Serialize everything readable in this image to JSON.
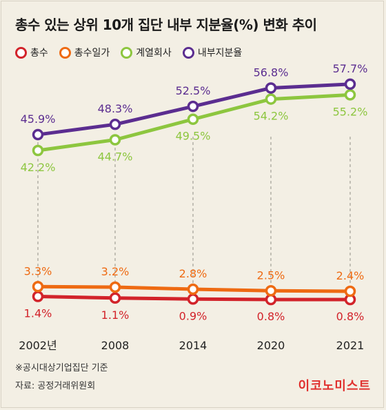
{
  "title": "총수 있는 상위 10개 집단 내부 지분율(%) 변화 추이",
  "footnotes": [
    "※공시대상기업집단 기준",
    "자료: 공정거래위원회"
  ],
  "brand": "이코노미스트",
  "chart_data": {
    "type": "line",
    "title": "총수 있는 상위 10개 집단 내부 지분율(%) 변화 추이",
    "categories": [
      "2002년",
      "2008",
      "2014",
      "2020",
      "2021"
    ],
    "ylabel": "",
    "xlabel": "",
    "grid": false,
    "legend": "top-left",
    "series": [
      {
        "name": "총수",
        "color": "#d2232a",
        "values": [
          1.4,
          1.1,
          0.9,
          0.8,
          0.8
        ],
        "labels": [
          "1.4%",
          "1.1%",
          "0.9%",
          "0.8%",
          "0.8%"
        ],
        "label_position": "below"
      },
      {
        "name": "총수일가",
        "color": "#ee6a12",
        "values": [
          3.3,
          3.2,
          2.8,
          2.5,
          2.4
        ],
        "labels": [
          "3.3%",
          "3.2%",
          "2.8%",
          "2.5%",
          "2.4%"
        ],
        "label_position": "above"
      },
      {
        "name": "계열회사",
        "color": "#8dc63f",
        "values": [
          42.2,
          44.7,
          49.5,
          54.2,
          55.2
        ],
        "labels": [
          "42.2%",
          "44.7%",
          "49.5%",
          "54.2%",
          "55.2%"
        ],
        "label_position": "below"
      },
      {
        "name": "내부지분율",
        "color": "#5b2d90",
        "values": [
          45.9,
          48.3,
          52.5,
          56.8,
          57.7
        ],
        "labels": [
          "45.9%",
          "48.3%",
          "52.5%",
          "56.8%",
          "57.7%"
        ],
        "label_position": "above"
      }
    ]
  }
}
